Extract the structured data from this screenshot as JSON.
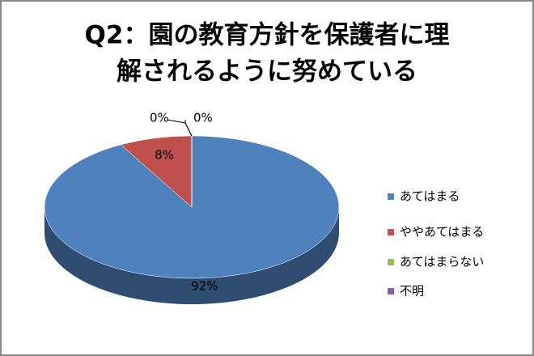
{
  "chart_data": {
    "type": "pie3d",
    "title": [
      "Q2：園の教育方針を保護者に理",
      "解されるように努めている"
    ],
    "categories": [
      "あてはまる",
      "ややあてはまる",
      "あてはまらない",
      "不明"
    ],
    "values": [
      92,
      8,
      0,
      0
    ],
    "value_labels": [
      "92%",
      "8%",
      "0%",
      "0%"
    ],
    "colors": [
      "#4f81bd",
      "#c0504d",
      "#9bbb59",
      "#8064a2"
    ],
    "legend": "right"
  }
}
